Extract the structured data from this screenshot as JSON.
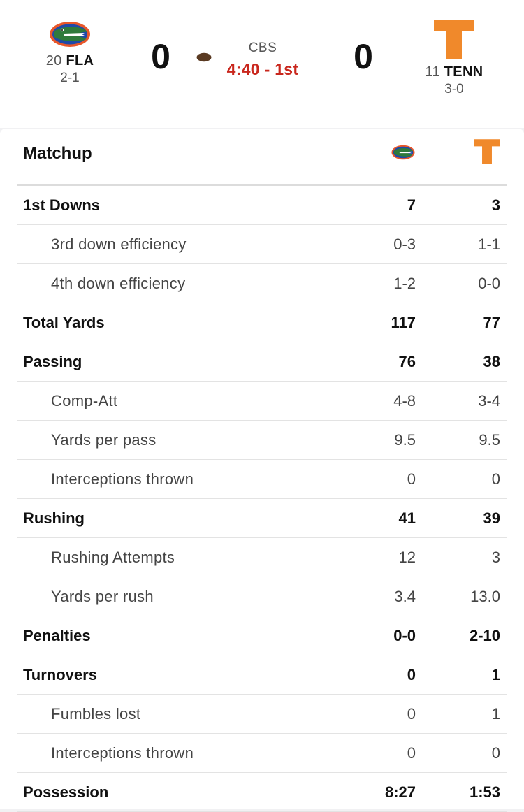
{
  "game": {
    "away": {
      "rank": "20",
      "abbr": "FLA",
      "record": "2-1",
      "score": "0",
      "logo_icon": "gators-logo-icon"
    },
    "home": {
      "rank": "11",
      "abbr": "TENN",
      "record": "3-0",
      "score": "0",
      "logo_icon": "power-t-logo-icon"
    },
    "network": "CBS",
    "clock": "4:40 - 1st",
    "possession_icon": "football-icon"
  },
  "matchup": {
    "title": "Matchup",
    "rows": [
      {
        "label": "1st Downs",
        "away": "7",
        "home": "3",
        "level": "main"
      },
      {
        "label": "3rd down efficiency",
        "away": "0-3",
        "home": "1-1",
        "level": "sub"
      },
      {
        "label": "4th down efficiency",
        "away": "1-2",
        "home": "0-0",
        "level": "sub"
      },
      {
        "label": "Total Yards",
        "away": "117",
        "home": "77",
        "level": "main"
      },
      {
        "label": "Passing",
        "away": "76",
        "home": "38",
        "level": "main"
      },
      {
        "label": "Comp-Att",
        "away": "4-8",
        "home": "3-4",
        "level": "sub"
      },
      {
        "label": "Yards per pass",
        "away": "9.5",
        "home": "9.5",
        "level": "sub"
      },
      {
        "label": "Interceptions thrown",
        "away": "0",
        "home": "0",
        "level": "sub"
      },
      {
        "label": "Rushing",
        "away": "41",
        "home": "39",
        "level": "main"
      },
      {
        "label": "Rushing Attempts",
        "away": "12",
        "home": "3",
        "level": "sub"
      },
      {
        "label": "Yards per rush",
        "away": "3.4",
        "home": "13.0",
        "level": "sub"
      },
      {
        "label": "Penalties",
        "away": "0-0",
        "home": "2-10",
        "level": "main"
      },
      {
        "label": "Turnovers",
        "away": "0",
        "home": "1",
        "level": "main"
      },
      {
        "label": "Fumbles lost",
        "away": "0",
        "home": "1",
        "level": "sub"
      },
      {
        "label": "Interceptions thrown",
        "away": "0",
        "home": "0",
        "level": "sub"
      },
      {
        "label": "Possession",
        "away": "8:27",
        "home": "1:53",
        "level": "main"
      }
    ]
  },
  "colors": {
    "clock": "#c9271d",
    "tenn_orange": "#f0892b",
    "fla_blue": "#1f4aa8",
    "fla_orange": "#e8572a",
    "gator_green": "#2f7a3b"
  }
}
